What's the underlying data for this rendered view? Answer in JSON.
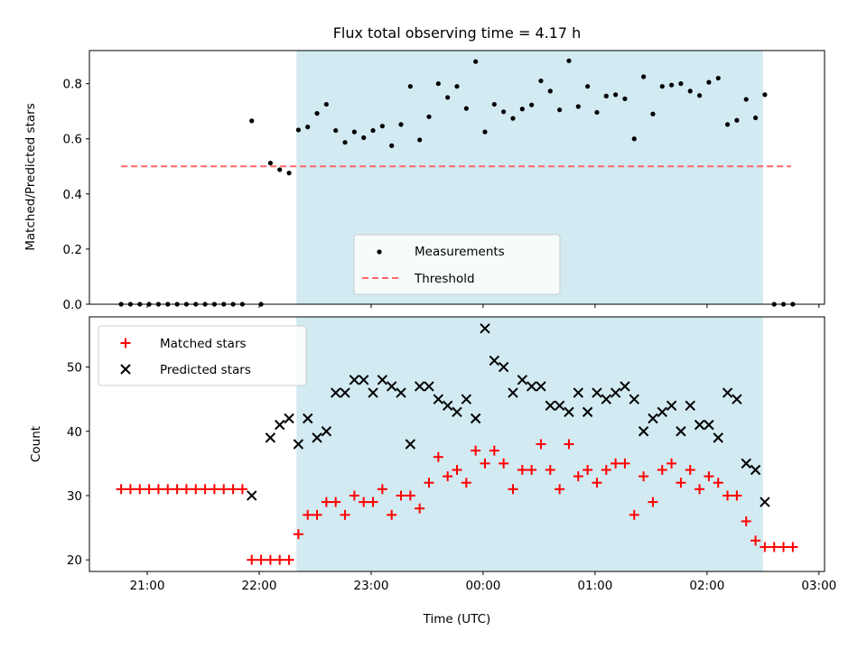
{
  "colors": {
    "span": "#add8e6",
    "measurement": "#000000",
    "threshold": "#ff6666",
    "matched": "#ff0000",
    "predicted": "#000000"
  },
  "chart_data": [
    {
      "type": "scatter",
      "title": "Flux total observing time = 4.17 h",
      "xlabel": "",
      "ylabel": "Matched/Predicted stars",
      "xlim": [
        "20:29",
        "03:03"
      ],
      "ylim": [
        0,
        0.92
      ],
      "yticks": [
        "0.0",
        "0.2",
        "0.4",
        "0.6",
        "0.8"
      ],
      "legend": {
        "placement": "bottom-center",
        "entries": [
          "Measurements",
          "Threshold"
        ]
      },
      "highlight_span": [
        "22:20",
        "02:30"
      ],
      "threshold": {
        "name": "Threshold",
        "y": 0.5,
        "x_range": [
          "20:46",
          "02:45"
        ]
      },
      "series": [
        {
          "name": "Measurements",
          "points": [
            [
              "20:46",
              0.0
            ],
            [
              "20:51",
              0.0
            ],
            [
              "20:56",
              0.0
            ],
            [
              "21:01",
              0.0
            ],
            [
              "21:06",
              0.0
            ],
            [
              "21:11",
              0.0
            ],
            [
              "21:16",
              0.0
            ],
            [
              "21:21",
              0.0
            ],
            [
              "21:26",
              0.0
            ],
            [
              "21:31",
              0.0
            ],
            [
              "21:36",
              0.0
            ],
            [
              "21:41",
              0.0
            ],
            [
              "21:46",
              0.0
            ],
            [
              "21:51",
              0.0
            ],
            [
              "21:56",
              0.665
            ],
            [
              "22:01",
              0.0
            ],
            [
              "22:06",
              0.512
            ],
            [
              "22:11",
              0.488
            ],
            [
              "22:16",
              0.476
            ],
            [
              "22:21",
              0.632
            ],
            [
              "22:26",
              0.643
            ],
            [
              "22:31",
              0.692
            ],
            [
              "22:36",
              0.725
            ],
            [
              "22:41",
              0.63
            ],
            [
              "22:46",
              0.587
            ],
            [
              "22:51",
              0.625
            ],
            [
              "22:56",
              0.604
            ],
            [
              "23:01",
              0.63
            ],
            [
              "23:06",
              0.646
            ],
            [
              "23:11",
              0.575
            ],
            [
              "23:16",
              0.652
            ],
            [
              "23:21",
              0.79
            ],
            [
              "23:26",
              0.596
            ],
            [
              "23:31",
              0.68
            ],
            [
              "23:36",
              0.8
            ],
            [
              "23:41",
              0.75
            ],
            [
              "23:46",
              0.79
            ],
            [
              "23:51",
              0.71
            ],
            [
              "23:56",
              0.88
            ],
            [
              "00:01",
              0.625
            ],
            [
              "00:06",
              0.725
            ],
            [
              "00:11",
              0.698
            ],
            [
              "00:16",
              0.674
            ],
            [
              "00:21",
              0.708
            ],
            [
              "00:26",
              0.723
            ],
            [
              "00:31",
              0.81
            ],
            [
              "00:36",
              0.773
            ],
            [
              "00:41",
              0.705
            ],
            [
              "00:46",
              0.883
            ],
            [
              "00:51",
              0.717
            ],
            [
              "00:56",
              0.79
            ],
            [
              "01:01",
              0.696
            ],
            [
              "01:06",
              0.755
            ],
            [
              "01:11",
              0.76
            ],
            [
              "01:16",
              0.745
            ],
            [
              "01:21",
              0.6
            ],
            [
              "01:26",
              0.825
            ],
            [
              "01:31",
              0.69
            ],
            [
              "01:36",
              0.79
            ],
            [
              "01:41",
              0.795
            ],
            [
              "01:46",
              0.8
            ],
            [
              "01:51",
              0.773
            ],
            [
              "01:56",
              0.757
            ],
            [
              "02:01",
              0.805
            ],
            [
              "02:06",
              0.82
            ],
            [
              "02:11",
              0.652
            ],
            [
              "02:16",
              0.667
            ],
            [
              "02:21",
              0.743
            ],
            [
              "02:26",
              0.676
            ],
            [
              "02:31",
              0.76
            ],
            [
              "02:36",
              0.0
            ],
            [
              "02:41",
              0.0
            ],
            [
              "02:46",
              0.0
            ]
          ]
        }
      ]
    },
    {
      "type": "scatter",
      "title": "",
      "xlabel": "Time (UTC)",
      "ylabel": "Count",
      "xlim": [
        "20:29",
        "03:03"
      ],
      "ylim": [
        18.2,
        57.8
      ],
      "xticks": [
        "21:00",
        "22:00",
        "23:00",
        "00:00",
        "01:00",
        "02:00",
        "03:00"
      ],
      "yticks": [
        "20",
        "30",
        "40",
        "50"
      ],
      "legend": {
        "placement": "top-left",
        "entries": [
          "Matched stars",
          "Predicted stars"
        ]
      },
      "highlight_span": [
        "22:20",
        "02:30"
      ],
      "series": [
        {
          "name": "Matched stars",
          "marker": "plus",
          "points": [
            [
              "20:46",
              31
            ],
            [
              "20:51",
              31
            ],
            [
              "20:56",
              31
            ],
            [
              "21:01",
              31
            ],
            [
              "21:06",
              31
            ],
            [
              "21:11",
              31
            ],
            [
              "21:16",
              31
            ],
            [
              "21:21",
              31
            ],
            [
              "21:26",
              31
            ],
            [
              "21:31",
              31
            ],
            [
              "21:36",
              31
            ],
            [
              "21:41",
              31
            ],
            [
              "21:46",
              31
            ],
            [
              "21:51",
              31
            ],
            [
              "21:56",
              20
            ],
            [
              "22:01",
              20
            ],
            [
              "22:06",
              20
            ],
            [
              "22:11",
              20
            ],
            [
              "22:16",
              20
            ],
            [
              "22:21",
              24
            ],
            [
              "22:26",
              27
            ],
            [
              "22:31",
              27
            ],
            [
              "22:36",
              29
            ],
            [
              "22:41",
              29
            ],
            [
              "22:46",
              27
            ],
            [
              "22:51",
              30
            ],
            [
              "22:56",
              29
            ],
            [
              "23:01",
              29
            ],
            [
              "23:06",
              31
            ],
            [
              "23:11",
              27
            ],
            [
              "23:16",
              30
            ],
            [
              "23:21",
              30
            ],
            [
              "23:26",
              28
            ],
            [
              "23:31",
              32
            ],
            [
              "23:36",
              36
            ],
            [
              "23:41",
              33
            ],
            [
              "23:46",
              34
            ],
            [
              "23:51",
              32
            ],
            [
              "23:56",
              37
            ],
            [
              "00:01",
              35
            ],
            [
              "00:06",
              37
            ],
            [
              "00:11",
              35
            ],
            [
              "00:16",
              31
            ],
            [
              "00:21",
              34
            ],
            [
              "00:26",
              34
            ],
            [
              "00:31",
              38
            ],
            [
              "00:36",
              34
            ],
            [
              "00:41",
              31
            ],
            [
              "00:46",
              38
            ],
            [
              "00:51",
              33
            ],
            [
              "00:56",
              34
            ],
            [
              "01:01",
              32
            ],
            [
              "01:06",
              34
            ],
            [
              "01:11",
              35
            ],
            [
              "01:16",
              35
            ],
            [
              "01:21",
              27
            ],
            [
              "01:26",
              33
            ],
            [
              "01:31",
              29
            ],
            [
              "01:36",
              34
            ],
            [
              "01:41",
              35
            ],
            [
              "01:46",
              32
            ],
            [
              "01:51",
              34
            ],
            [
              "01:56",
              31
            ],
            [
              "02:01",
              33
            ],
            [
              "02:06",
              32
            ],
            [
              "02:11",
              30
            ],
            [
              "02:16",
              30
            ],
            [
              "02:21",
              26
            ],
            [
              "02:26",
              23
            ],
            [
              "02:31",
              22
            ],
            [
              "02:36",
              22
            ],
            [
              "02:41",
              22
            ],
            [
              "02:46",
              22
            ]
          ]
        },
        {
          "name": "Predicted stars",
          "marker": "x",
          "points": [
            [
              "21:56",
              30
            ],
            [
              "22:06",
              39
            ],
            [
              "22:11",
              41
            ],
            [
              "22:16",
              42
            ],
            [
              "22:21",
              38
            ],
            [
              "22:26",
              42
            ],
            [
              "22:31",
              39
            ],
            [
              "22:36",
              40
            ],
            [
              "22:41",
              46
            ],
            [
              "22:46",
              46
            ],
            [
              "22:51",
              48
            ],
            [
              "22:56",
              48
            ],
            [
              "23:01",
              46
            ],
            [
              "23:06",
              48
            ],
            [
              "23:11",
              47
            ],
            [
              "23:16",
              46
            ],
            [
              "23:21",
              38
            ],
            [
              "23:26",
              47
            ],
            [
              "23:31",
              47
            ],
            [
              "23:36",
              45
            ],
            [
              "23:41",
              44
            ],
            [
              "23:46",
              43
            ],
            [
              "23:51",
              45
            ],
            [
              "23:56",
              42
            ],
            [
              "00:01",
              56
            ],
            [
              "00:06",
              51
            ],
            [
              "00:11",
              50
            ],
            [
              "00:16",
              46
            ],
            [
              "00:21",
              48
            ],
            [
              "00:26",
              47
            ],
            [
              "00:31",
              47
            ],
            [
              "00:36",
              44
            ],
            [
              "00:41",
              44
            ],
            [
              "00:46",
              43
            ],
            [
              "00:51",
              46
            ],
            [
              "00:56",
              43
            ],
            [
              "01:01",
              46
            ],
            [
              "01:06",
              45
            ],
            [
              "01:11",
              46
            ],
            [
              "01:16",
              47
            ],
            [
              "01:21",
              45
            ],
            [
              "01:26",
              40
            ],
            [
              "01:31",
              42
            ],
            [
              "01:36",
              43
            ],
            [
              "01:41",
              44
            ],
            [
              "01:46",
              40
            ],
            [
              "01:51",
              44
            ],
            [
              "01:56",
              41
            ],
            [
              "02:01",
              41
            ],
            [
              "02:06",
              39
            ],
            [
              "02:11",
              46
            ],
            [
              "02:16",
              45
            ],
            [
              "02:21",
              35
            ],
            [
              "02:26",
              34
            ],
            [
              "02:31",
              29
            ]
          ]
        }
      ]
    }
  ]
}
